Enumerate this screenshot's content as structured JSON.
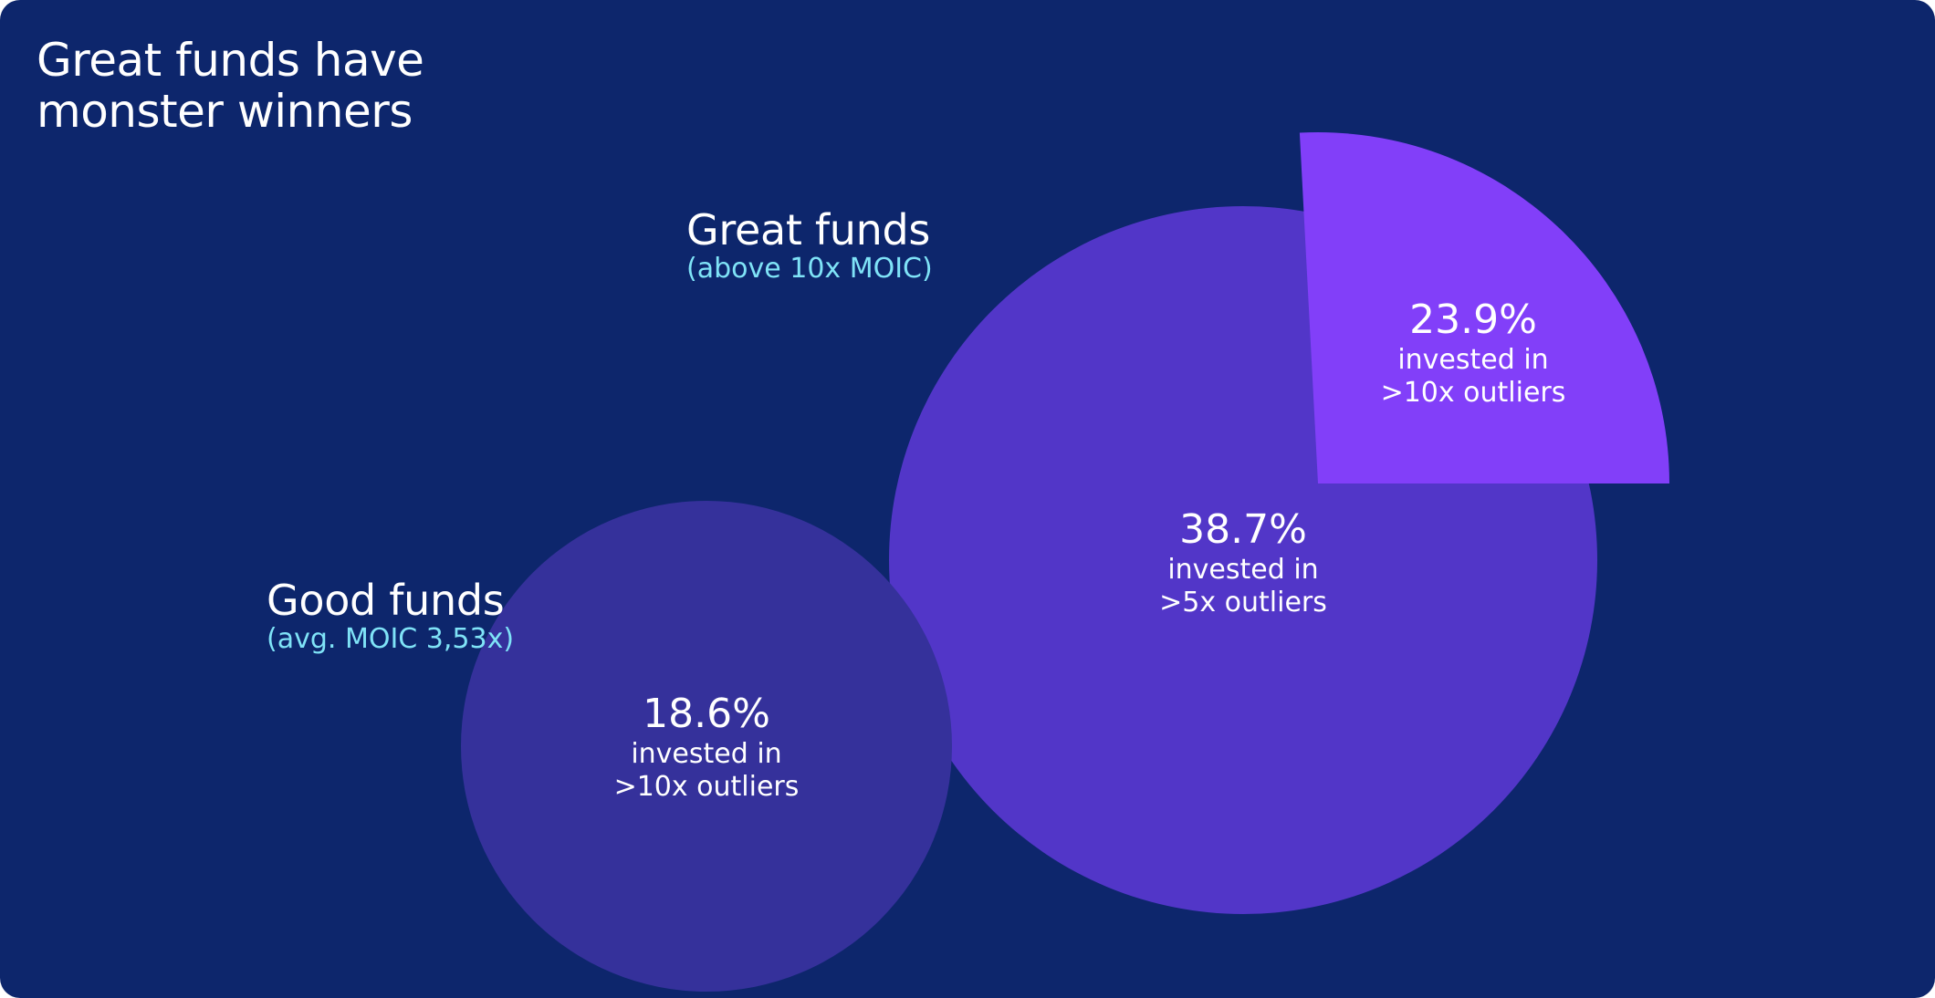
{
  "header": {
    "title_line1": "Great funds have",
    "title_line2": "monster winners"
  },
  "groups": {
    "great": {
      "name": "Great funds",
      "note": "(above 10x MOIC)"
    },
    "good": {
      "name": "Good funds",
      "note": "(avg. MOIC 3,53x)"
    }
  },
  "chart_data": {
    "type": "bubble",
    "title": "Great funds have monster winners",
    "series": [
      {
        "name": "Good funds",
        "note": "(avg. MOIC 3,53x)",
        "values": [
          {
            "value": 18.6,
            "label": "18.6%",
            "desc_line1": "invested in",
            "desc_line2": ">10x outliers",
            "color": "#35319b"
          }
        ]
      },
      {
        "name": "Great funds",
        "note": "(above 10x MOIC)",
        "values": [
          {
            "value": 38.7,
            "label": "38.7%",
            "desc_line1": "invested in",
            "desc_line2": ">5x outliers",
            "color": "#5236c8"
          },
          {
            "value": 23.9,
            "label": "23.9%",
            "desc_line1": "invested in",
            "desc_line2": ">10x outliers",
            "color": "#823ff9"
          }
        ]
      }
    ],
    "colors": {
      "background": "#0d266c",
      "note_text": "#7fe3f7",
      "text": "#ffffff"
    }
  }
}
